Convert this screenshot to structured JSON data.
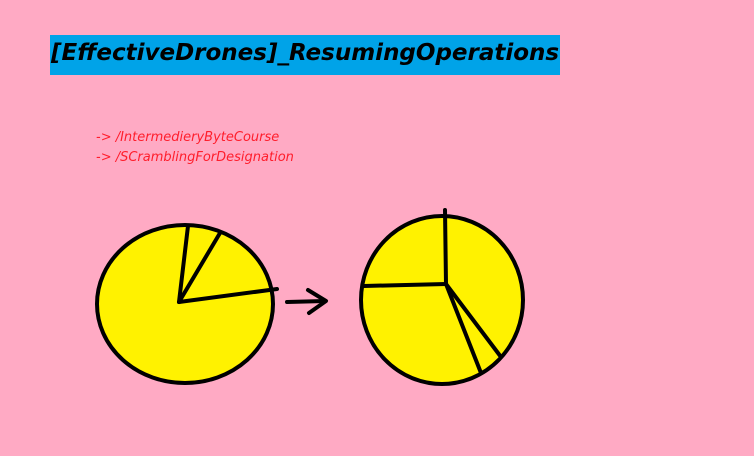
{
  "title": "[EffectiveDrones]_ResumingOperations",
  "paths": [
    "-> /IntermedieryByteCourse",
    "-> /SCramblingForDesignation"
  ],
  "colors": {
    "background": "#ffaac4",
    "title_bar": "#00a3e8",
    "path_text": "#ff1e2c",
    "pie_fill": "#fff200",
    "stroke": "#000000"
  },
  "icons": [
    "arrow-right-icon"
  ]
}
